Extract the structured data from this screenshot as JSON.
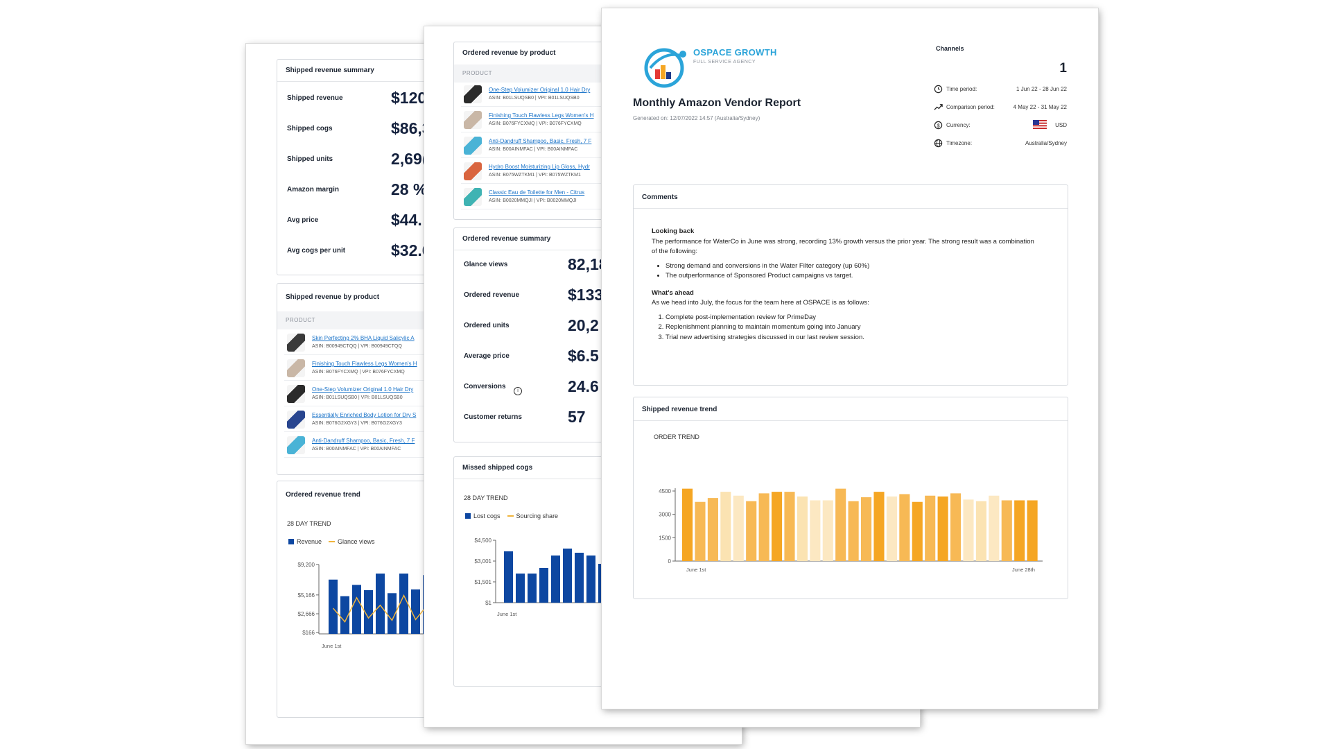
{
  "page1": {
    "summary": {
      "title": "Shipped revenue summary",
      "rows": [
        {
          "label": "Shipped revenue",
          "value": "$120"
        },
        {
          "label": "Shipped cogs",
          "value": "$86,3"
        },
        {
          "label": "Shipped units",
          "value": "2,69("
        },
        {
          "label": "Amazon margin",
          "value": "28 %"
        },
        {
          "label": "Avg price",
          "value": "$44."
        },
        {
          "label": "Avg cogs per unit",
          "value": "$32.0"
        }
      ]
    },
    "by_product": {
      "title": "Shipped revenue by product",
      "column": "PRODUCT",
      "rows": [
        {
          "name": "Skin Perfecting 2% BHA Liquid Salicylic A",
          "asin": "ASIN: B00949CTQQ | VPI: B00949CTQQ",
          "thumb": "#3a3a3a"
        },
        {
          "name": "Finishing Touch Flawless Legs Women's H",
          "asin": "ASIN: B076FYCXMQ | VPI: B076FYCXMQ",
          "thumb": "#c9b7a6"
        },
        {
          "name": "One-Step Volumizer Original 1.0 Hair Dry",
          "asin": "ASIN: B01LSUQSB0 | VPI: B01LSUQSB0",
          "thumb": "#2b2b2b"
        },
        {
          "name": "Essentially Enriched Body Lotion for Dry S",
          "asin": "ASIN: B076G2XGY3 | VPI: B076G2XGY3",
          "thumb": "#28458f"
        },
        {
          "name": "Anti-Dandruff Shampoo, Basic, Fresh, 7 F",
          "asin": "ASIN: B00AINMFAC | VPI: B00AINMFAC",
          "thumb": "#4ab3d6"
        }
      ]
    },
    "trend": {
      "title": "Ordered revenue trend",
      "subtitle": "28 DAY TREND",
      "legend": [
        {
          "name": "Revenue",
          "color": "#0d47a1"
        },
        {
          "name": "Glance views",
          "color": "#f0b43c"
        }
      ],
      "x_start": "June 1st"
    }
  },
  "page2": {
    "by_product": {
      "title": "Ordered revenue by product",
      "column": "PRODUCT",
      "rows": [
        {
          "name": "One-Step Volumizer Original 1.0 Hair Dry",
          "asin": "ASIN: B01LSUQSB0 | VPI: B01LSUQSB0",
          "thumb": "#2b2b2b"
        },
        {
          "name": "Finishing Touch Flawless Legs Women's H",
          "asin": "ASIN: B076FYCXMQ | VPI: B076FYCXMQ",
          "thumb": "#c9b7a6"
        },
        {
          "name": "Anti-Dandruff Shampoo, Basic, Fresh, 7 F",
          "asin": "ASIN: B00AINMFAC | VPI: B00AINMFAC",
          "thumb": "#4ab3d6"
        },
        {
          "name": "Hydro Boost Moisturizing Lip Gloss, Hydr",
          "asin": "ASIN: B075WZTKM1 | VPI: B075WZTKM1",
          "thumb": "#d9653f"
        },
        {
          "name": "Classic Eau de Toilette for Men - Citrus",
          "asin": "ASIN: B0020MMQJI | VPI: B0020MMQJI",
          "thumb": "#3fb3b3"
        }
      ]
    },
    "summary": {
      "title": "Ordered revenue summary",
      "rows": [
        {
          "label": "Glance views",
          "value": "82,18"
        },
        {
          "label": "Ordered revenue",
          "value": "$133"
        },
        {
          "label": "Ordered units",
          "value": "20,2"
        },
        {
          "label": "Average price",
          "value": "$6.5"
        },
        {
          "label": "Conversions",
          "value": "24.6"
        },
        {
          "label": "Customer returns",
          "value": "57"
        }
      ]
    },
    "missed": {
      "title": "Missed shipped cogs",
      "subtitle": "28 DAY TREND",
      "legend": [
        {
          "name": "Lost cogs",
          "color": "#0d47a1"
        },
        {
          "name": "Sourcing share",
          "color": "#f0b43c"
        }
      ],
      "x_start": "June 1st"
    }
  },
  "page3": {
    "brand": "OSPACE GROWTH",
    "brand_sub": "FULL SERVICE AGENCY",
    "title": "Monthly Amazon Vendor Report",
    "generated": "Generated on: 12/07/2022 14:57 (Australia/Sydney)",
    "channels_label": "Channels",
    "channels_value": "1",
    "meta": [
      {
        "icon": "clock-icon",
        "label": "Time period:",
        "value": "1 Jun 22 - 28 Jun 22"
      },
      {
        "icon": "trend-up-icon",
        "label": "Comparison period:",
        "value": "4 May 22 - 31 May 22"
      },
      {
        "icon": "dollar-icon",
        "label": "Currency:",
        "value": "USD"
      },
      {
        "icon": "globe-icon",
        "label": "Timezone:",
        "value": "Australia/Sydney"
      }
    ],
    "comments": {
      "title": "Comments",
      "looking_back_heading": "Looking back",
      "looking_back_text": "The performance for WaterCo in June was strong, recording 13% growth versus the prior year. The strong result was a combination of the following:",
      "looking_back_points": [
        "Strong demand and conversions in the Water Filter category (up 60%)",
        "The outperformance of Sponsored Product campaigns vs target."
      ],
      "ahead_heading": "What's ahead",
      "ahead_text": "As we head into July, the focus for the team here at OSPACE is as follows:",
      "ahead_points": [
        "Complete post-implementation review for PrimeDay",
        "Replenishment planning to maintain momentum going into January",
        "Trial new advertising strategies discussed in our last review session."
      ]
    },
    "trend": {
      "title": "Shipped revenue trend",
      "subtitle": "ORDER TREND",
      "x_start": "June 1st",
      "x_end": "June 28th"
    }
  },
  "chart_data": [
    {
      "type": "bar",
      "title": "ORDER TREND",
      "xlabel": "",
      "ylabel": "",
      "ylim": [
        0,
        4500
      ],
      "yticks": [
        0,
        1500,
        3000,
        4500
      ],
      "ytick_labels": [
        "0",
        "1500",
        "3000",
        "4500"
      ],
      "x_labels": [
        "June 1st",
        "June 28th"
      ],
      "values": [
        4650,
        3800,
        4050,
        4450,
        4200,
        3850,
        4350,
        4450,
        4450,
        4150,
        3900,
        3900,
        4650,
        3850,
        4100,
        4450,
        4150,
        4300,
        3800,
        4200,
        4150,
        4350,
        3950,
        3850,
        4200,
        3900,
        3900,
        3900
      ],
      "colors": [
        "#f5a623",
        "#f7b955",
        "#f7b955",
        "#fbe3b2",
        "#fce8c2",
        "#f7b955",
        "#f7b955",
        "#f5a623",
        "#f7b955",
        "#fbe3b2",
        "#fce8c2",
        "#fce8c2",
        "#f7b955",
        "#f7b955",
        "#f7b955",
        "#f5a623",
        "#fce8c2",
        "#f7b955",
        "#f5a623",
        "#f7b955",
        "#f5a623",
        "#f7b955",
        "#fce8c2",
        "#fbe3b2",
        "#fce8c2",
        "#f7b955",
        "#f5a623",
        "#f5a623"
      ]
    },
    {
      "type": "bar",
      "title": "28 DAY TREND",
      "xlabel": "",
      "ylabel": "",
      "ylim": [
        0,
        9200
      ],
      "yticks": [
        166,
        2666,
        5166,
        9200
      ],
      "ytick_labels": [
        "$166",
        "$2,666",
        "$5,166",
        "$9,200"
      ],
      "x_labels": [
        "June 1st"
      ],
      "series": [
        {
          "name": "Revenue",
          "type": "bar",
          "values": [
            7200,
            5000,
            6500,
            5800,
            8000,
            5400,
            8000,
            5900,
            7800
          ]
        },
        {
          "name": "Glance views",
          "type": "line",
          "values": [
            3400,
            1600,
            4800,
            2100,
            3800,
            1800,
            5100,
            1900,
            3800
          ]
        }
      ]
    },
    {
      "type": "bar",
      "title": "28 DAY TREND",
      "xlabel": "",
      "ylabel": "",
      "ylim": [
        1,
        4500
      ],
      "yticks": [
        1,
        1501,
        3001,
        4500
      ],
      "ytick_labels": [
        "$1",
        "$1,501",
        "$3,001",
        "$4,500"
      ],
      "x_labels": [
        "June 1st"
      ],
      "series": [
        {
          "name": "Lost cogs",
          "type": "bar",
          "values": [
            3700,
            2100,
            2100,
            2500,
            3400,
            3900,
            3600,
            3400,
            2800
          ]
        }
      ]
    }
  ]
}
